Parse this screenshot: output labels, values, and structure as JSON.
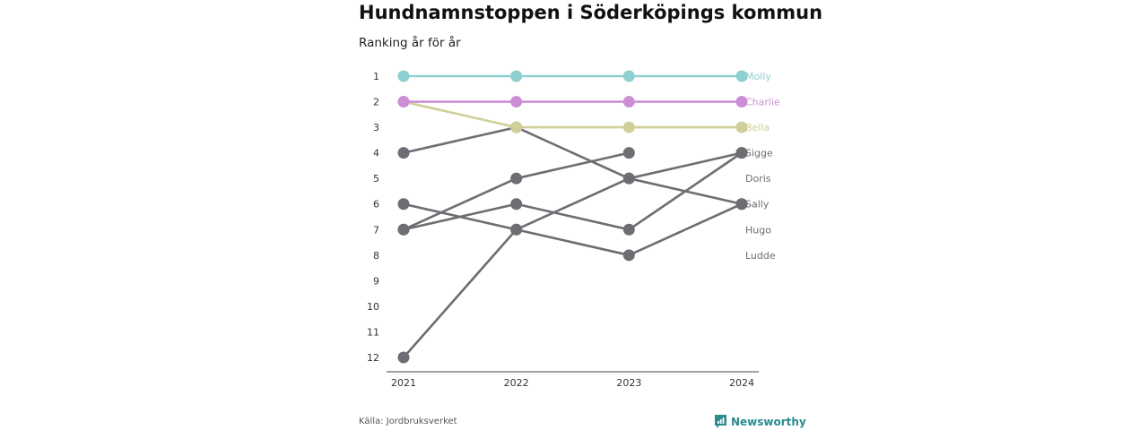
{
  "title": "Hundnamnstoppen i Söderköpings kommun",
  "subtitle": "Ranking år för år",
  "source": "Källa: Jordbruksverket",
  "brand": {
    "name": "Newsworthy",
    "icon": "newsworthy-logo-icon",
    "color": "#2a8c8c"
  },
  "chart_data": {
    "type": "line",
    "x": [
      "2021",
      "2022",
      "2023",
      "2024"
    ],
    "y_ticks": [
      "1",
      "2",
      "3",
      "4",
      "5",
      "6",
      "7",
      "8",
      "9",
      "10",
      "11",
      "12"
    ],
    "ylim": [
      1,
      12
    ],
    "y_inverted": true,
    "grid": false,
    "highlight_colors": {
      "Molly": "#8ecfcf",
      "Charlie": "#cc8fd6",
      "Bella": "#cfcf99"
    },
    "default_color": "#6e6d73",
    "series": [
      {
        "name": "Molly",
        "values": [
          1,
          1,
          1,
          1
        ]
      },
      {
        "name": "Charlie",
        "values": [
          2,
          2,
          2,
          2
        ]
      },
      {
        "name": "Bella",
        "values": [
          2,
          3,
          3,
          3
        ]
      },
      {
        "name": "Sigge",
        "values": [
          12,
          7,
          5,
          4
        ]
      },
      {
        "name": "Doris",
        "values": [
          7,
          5,
          4,
          null
        ]
      },
      {
        "name": "Sally",
        "values": [
          4,
          3,
          5,
          6
        ]
      },
      {
        "name": "Hugo",
        "values": [
          6,
          7,
          8,
          6
        ]
      },
      {
        "name": "Ludde",
        "values": [
          7,
          6,
          7,
          4
        ]
      }
    ]
  }
}
